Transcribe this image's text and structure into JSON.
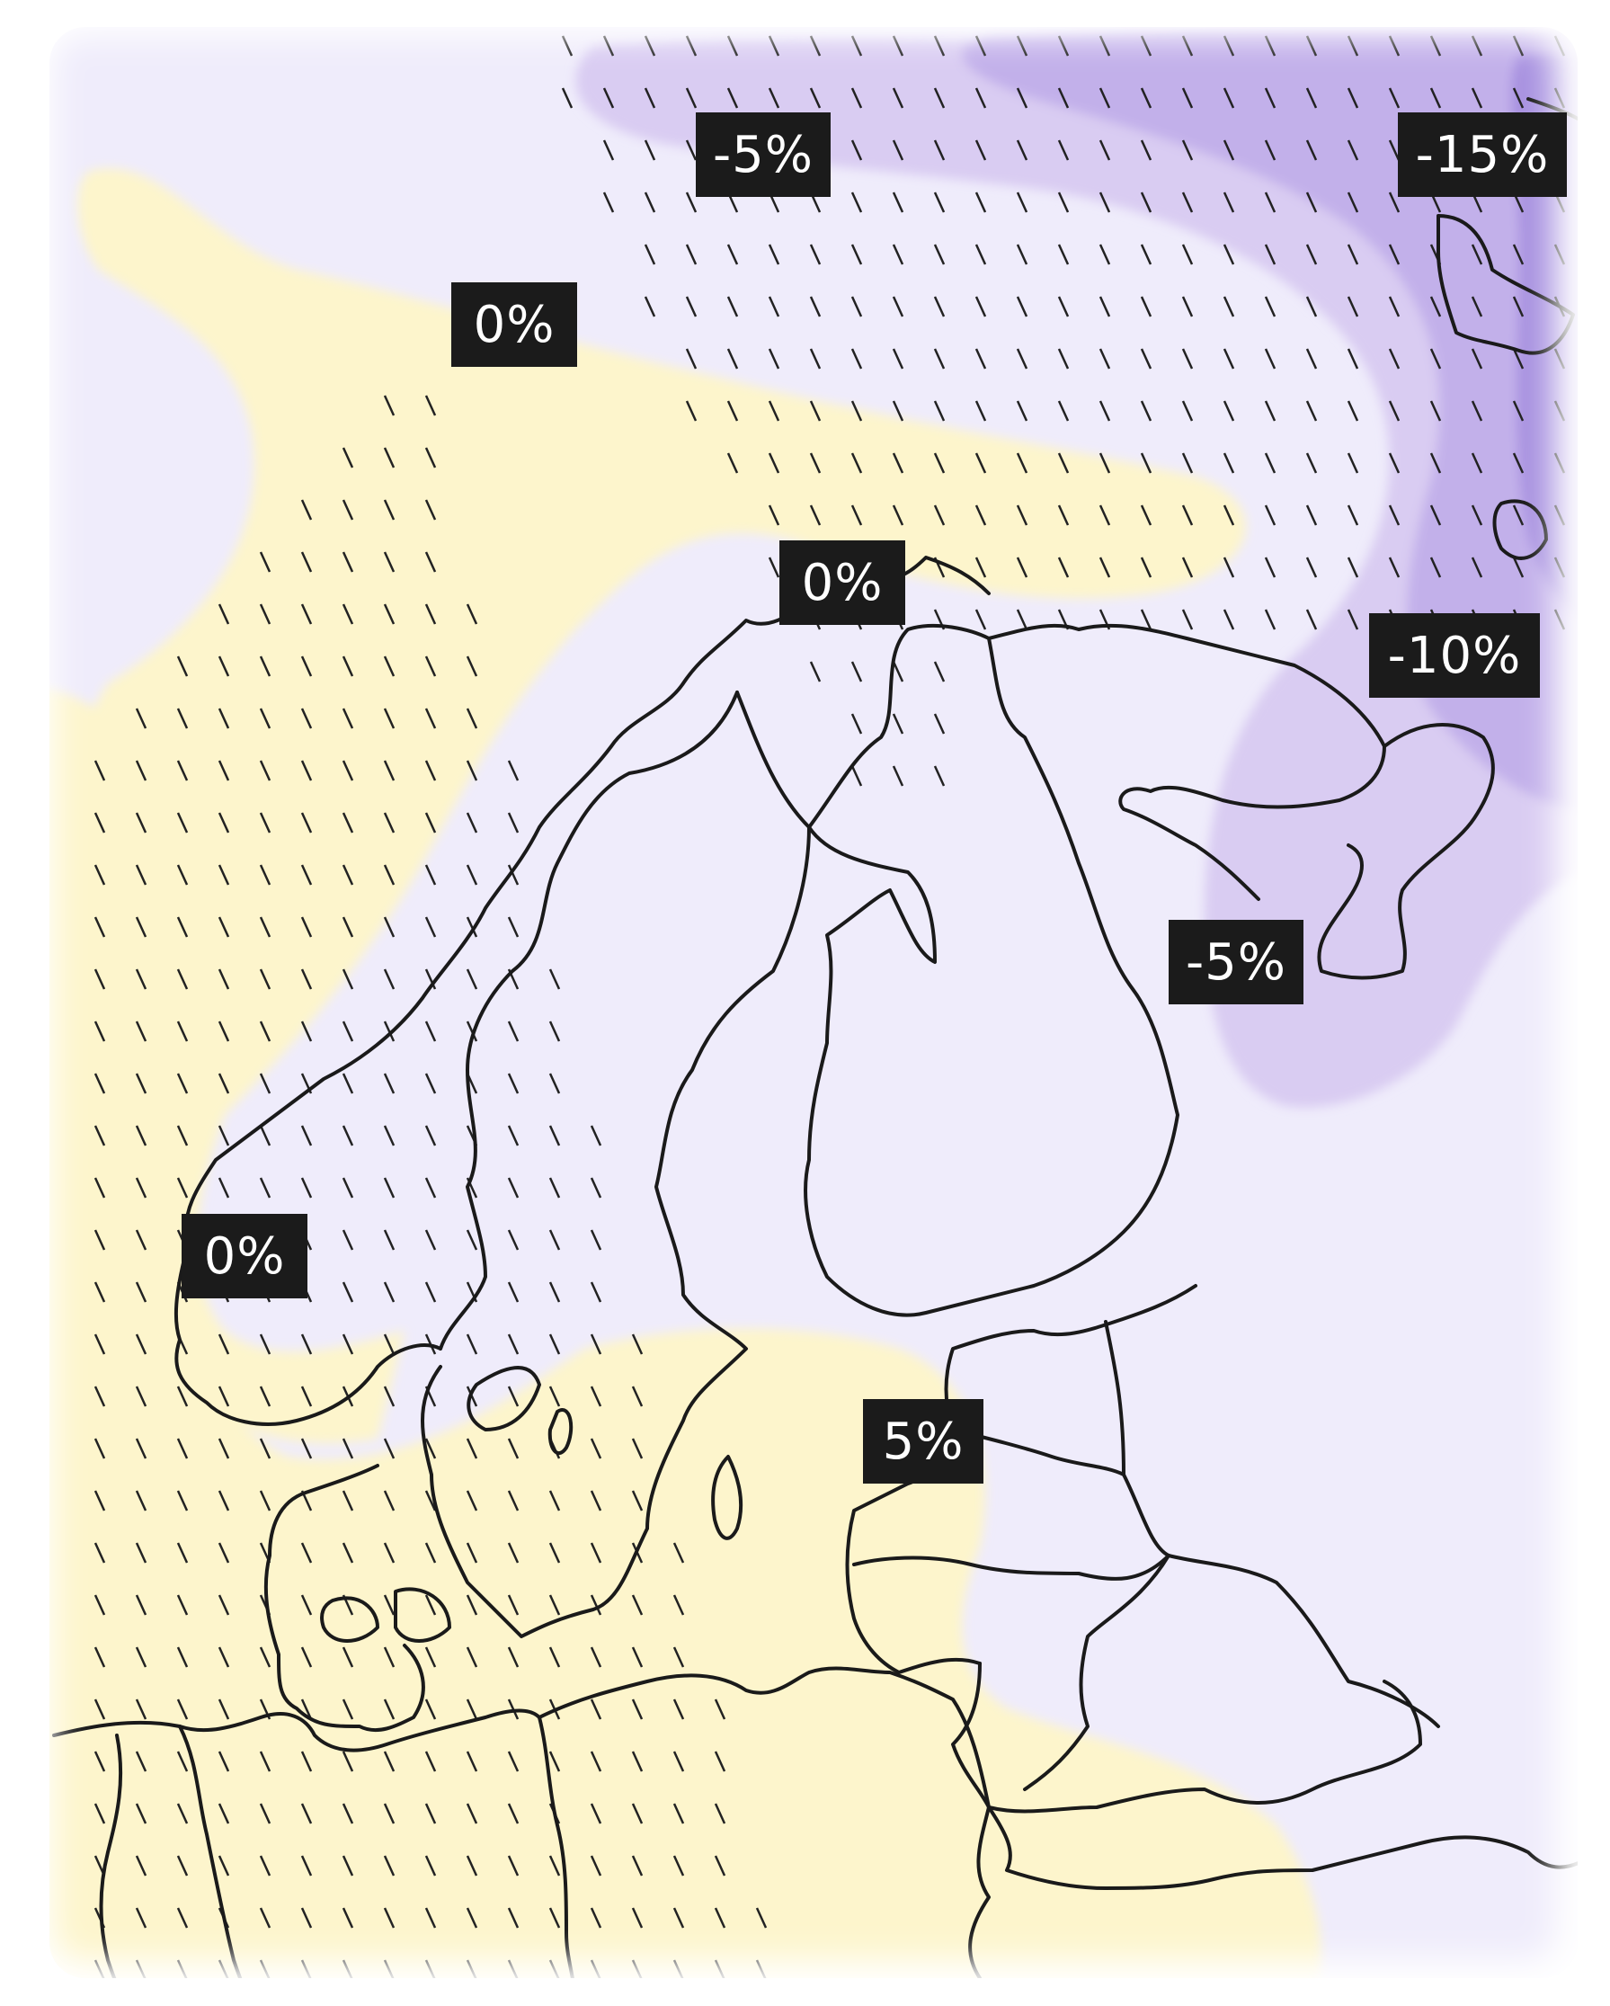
{
  "map": {
    "colors": {
      "background": "#efecfb",
      "zero_band": "#fdf5cc",
      "increase": "#fbf1c5",
      "decrease_5": "#d9ccf2",
      "decrease_10": "#c2b0ea",
      "decrease_15": "#a892e0",
      "coastline": "#1a1a1a",
      "hatch": "#222222",
      "label_bg": "#1b1b1b",
      "label_text": "#ffffff"
    },
    "hatching": "dashed diagonal lines",
    "labels": [
      {
        "text": "-5%"
      },
      {
        "text": "-15%"
      },
      {
        "text": "0%"
      },
      {
        "text": "0%"
      },
      {
        "text": "-10%"
      },
      {
        "text": "-5%"
      },
      {
        "text": "0%"
      },
      {
        "text": "5%"
      }
    ]
  }
}
